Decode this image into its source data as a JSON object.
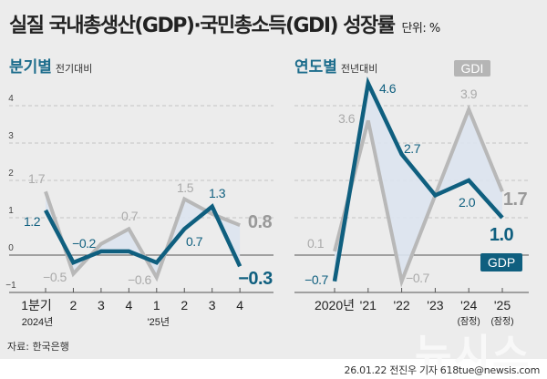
{
  "title": "실질 국내총생산(GDP)·국민총소득(GDI) 성장률",
  "unit": "단위: %",
  "source": "자료: 한국은행",
  "credit": "26.01.22 전진우 기자 618tue@newsis.com",
  "watermark": "뉴시스",
  "colors": {
    "gdp": "#0f5f7f",
    "gdi": "#b8b8b8",
    "fill": "#dde4ef",
    "heading": "#1d6d8c"
  },
  "chart_data": [
    {
      "type": "line",
      "heading": "분기별",
      "subheading": "전기대비",
      "categories": [
        "1분기",
        "2",
        "3",
        "4",
        "1",
        "2",
        "3",
        "4"
      ],
      "year_labels": [
        "2024년",
        "",
        "",
        "",
        "'25년",
        "",
        "",
        ""
      ],
      "yticks": [
        4,
        3,
        2,
        1,
        0,
        -1
      ],
      "ylim": [
        -1,
        4
      ],
      "grid": true,
      "series": [
        {
          "name": "GDI",
          "values": [
            1.7,
            -0.5,
            0.3,
            0.7,
            -0.6,
            1.5,
            1.1,
            0.8
          ]
        },
        {
          "name": "GDP",
          "values": [
            1.2,
            -0.2,
            0.1,
            0.1,
            -0.2,
            0.7,
            1.3,
            -0.3
          ]
        }
      ],
      "labels": [
        {
          "series": "GDI",
          "index": 0,
          "text": "1.7"
        },
        {
          "series": "GDP",
          "index": 0,
          "text": "1.2"
        },
        {
          "series": "GDP",
          "index": 1,
          "text": "−0.2"
        },
        {
          "series": "GDI",
          "index": 1,
          "text": "−0.5"
        },
        {
          "series": "GDI",
          "index": 3,
          "text": "0.7"
        },
        {
          "series": "GDI",
          "index": 4,
          "text": "−0.6"
        },
        {
          "series": "GDI",
          "index": 5,
          "text": "1.5"
        },
        {
          "series": "GDP",
          "index": 6,
          "text": "1.3"
        },
        {
          "series": "GDP",
          "index": 5,
          "text": "0.7"
        },
        {
          "series": "GDI",
          "index": 7,
          "text": "0.8"
        },
        {
          "series": "GDP",
          "index": 7,
          "text": "−0.3"
        }
      ]
    },
    {
      "type": "line",
      "heading": "연도별",
      "subheading": "전년대비",
      "categories": [
        "2020년",
        "'21",
        "'22",
        "'23",
        "'24",
        "'25"
      ],
      "sub_labels": [
        "",
        "",
        "",
        "",
        "(잠정)",
        "(잠정)"
      ],
      "ylim": [
        -1,
        4.6
      ],
      "grid": true,
      "legend": [
        "GDI",
        "GDP"
      ],
      "series": [
        {
          "name": "GDI",
          "values": [
            0.1,
            3.6,
            -0.7,
            1.6,
            3.9,
            1.7
          ]
        },
        {
          "name": "GDP",
          "values": [
            -0.7,
            4.6,
            2.7,
            1.6,
            2.0,
            1.0
          ]
        }
      ],
      "labels": [
        {
          "series": "GDP",
          "index": 0,
          "text": "−0.7"
        },
        {
          "series": "GDI",
          "index": 0,
          "text": "0.1"
        },
        {
          "series": "GDI",
          "index": 1,
          "text": "3.6"
        },
        {
          "series": "GDP",
          "index": 1,
          "text": "4.6"
        },
        {
          "series": "GDP",
          "index": 2,
          "text": "2.7"
        },
        {
          "series": "GDI",
          "index": 2,
          "text": "−0.7"
        },
        {
          "series": "GDI",
          "index": 4,
          "text": "3.9"
        },
        {
          "series": "GDP",
          "index": 4,
          "text": "2.0"
        },
        {
          "series": "GDI",
          "index": 5,
          "text": "1.7"
        },
        {
          "series": "GDP",
          "index": 5,
          "text": "1.0"
        }
      ]
    }
  ]
}
